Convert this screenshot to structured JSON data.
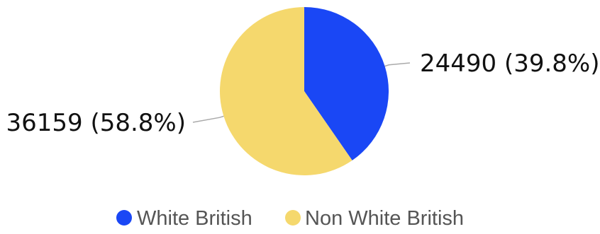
{
  "chart_data": {
    "type": "pie",
    "title": "",
    "slices": [
      {
        "name": "White British",
        "value": 24490,
        "label": "24490 (39.8%)",
        "color": "#1a47f5"
      },
      {
        "name": "Non White British",
        "value": 36159,
        "label": "36159 (58.8%)",
        "color": "#f5d86d"
      }
    ],
    "legend": {
      "position": "bottom",
      "entries": [
        "White British",
        "Non White British"
      ]
    }
  },
  "colors": {
    "leader_line": "#aaaaaa",
    "label_text": "#111111",
    "legend_text": "#555555"
  }
}
